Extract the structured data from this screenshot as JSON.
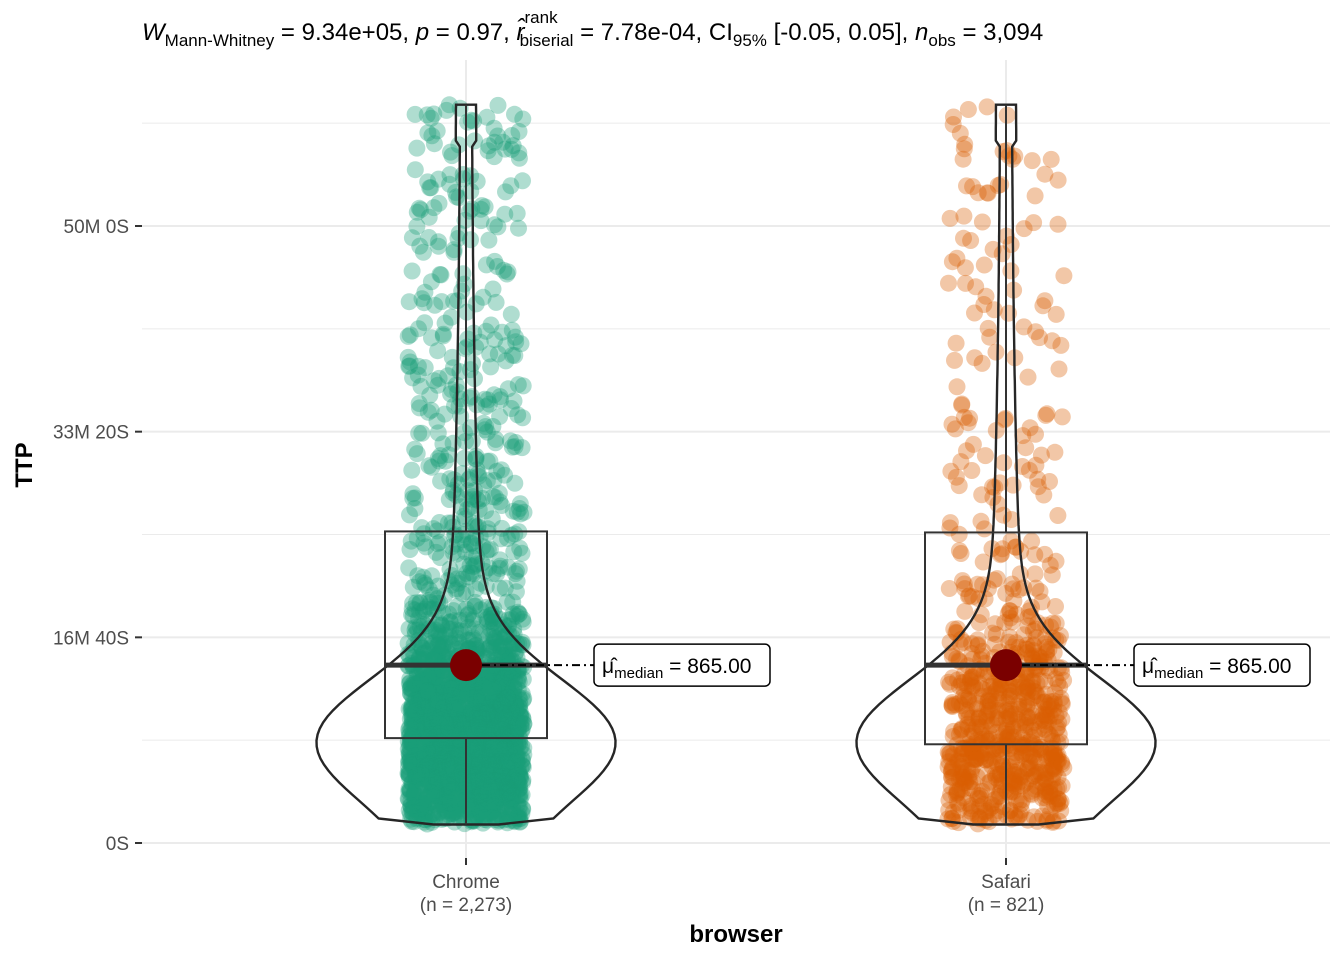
{
  "chart_data": {
    "type": "violin-box-scatter",
    "title": {
      "w_symbol": "W",
      "w_sub": "Mann-Whitney",
      "w_value": " = 9.34e+05, ",
      "p_symbol": "p",
      "p_value": " = 0.97, ",
      "r_symbol": "r̂",
      "r_sup": "rank",
      "r_sub": "biserial",
      "r_value": " = 7.78e-04, CI",
      "ci_sub": "95%",
      "ci_value": " [-0.05, 0.05], ",
      "n_symbol": "n",
      "n_sub": "obs",
      "n_value": " = 3,094"
    },
    "xlabel": "browser",
    "ylabel": "TTP",
    "y_unit": "seconds",
    "ylim": [
      -60,
      3680
    ],
    "y_ticks": [
      {
        "value": 0,
        "label": "0S"
      },
      {
        "value": 1000,
        "label": "16M 40S"
      },
      {
        "value": 2000,
        "label": "33M 20S"
      },
      {
        "value": 3000,
        "label": "50M 0S"
      }
    ],
    "y_minor_ticks": [
      500,
      1500,
      2500,
      3500
    ],
    "grid": true,
    "groups": [
      {
        "name": "Chrome",
        "n_label": "(n = 2,273)",
        "n": 2273,
        "color": "#1b9e77",
        "median": 865,
        "q1": 510,
        "q3": 1515,
        "whisker_low": 90,
        "whisker_high": 3590,
        "min": 90,
        "max": 3590,
        "median_label_symbol": "μ̂",
        "median_label_sub": "median",
        "median_label_value": " = 865.00"
      },
      {
        "name": "Safari",
        "n_label": "(n = 821)",
        "n": 821,
        "color": "#d95f02",
        "median": 865,
        "q1": 480,
        "q3": 1510,
        "whisker_low": 90,
        "whisker_high": 3590,
        "min": 90,
        "max": 3590,
        "median_label_symbol": "μ̂",
        "median_label_sub": "median",
        "median_label_value": " = 865.00"
      }
    ]
  },
  "colors": {
    "grid": "#ebebeb",
    "box": "#333333",
    "violin": "#262626",
    "median_point": "#7a0000",
    "tick_text": "#4d4d4d"
  }
}
